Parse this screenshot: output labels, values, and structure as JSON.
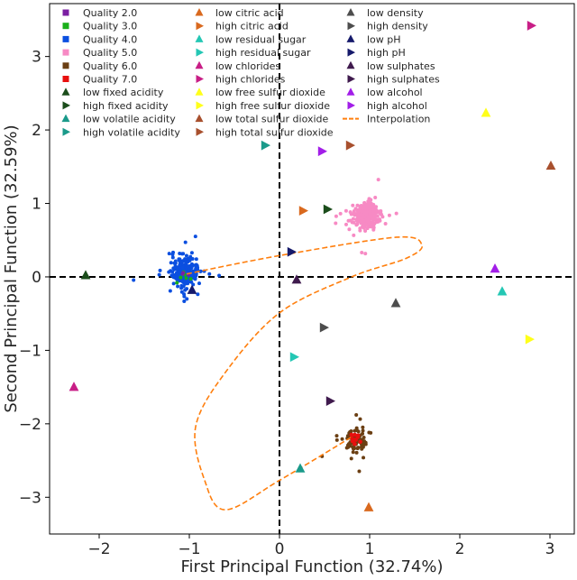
{
  "chart_data": {
    "type": "scatter",
    "xlabel": "First Principal Function (32.74%)",
    "ylabel": "Second Principal Function (32.59%)",
    "xlim": [
      -2.55,
      3.27
    ],
    "ylim": [
      -3.5,
      3.72
    ],
    "xticks": [
      -2,
      -1,
      0,
      1,
      2,
      3
    ],
    "yticks": [
      -3,
      -2,
      -1,
      0,
      1,
      2,
      3
    ],
    "grid": false,
    "reference_lines": {
      "x": 0,
      "y": 0,
      "style": "dashed",
      "color": "#000000"
    },
    "legend_position": "top-left",
    "clusters": [
      {
        "name": "Quality 2.0",
        "color": "#7b1fa2",
        "center": [
          -1.05,
          0.03
        ],
        "spread": [
          0.02,
          0.02
        ],
        "count": 3
      },
      {
        "name": "Quality 3.0",
        "color": "#1aaf1a",
        "center": [
          -1.05,
          0.02
        ],
        "spread": [
          0.03,
          0.03
        ],
        "count": 6
      },
      {
        "name": "Quality 4.0",
        "color": "#0b4fe0",
        "center": [
          -1.05,
          0.06
        ],
        "spread": [
          0.07,
          0.09
        ],
        "count": 300
      },
      {
        "name": "Quality 5.0",
        "color": "#f78ac4",
        "center": [
          0.97,
          0.83
        ],
        "spread": [
          0.07,
          0.08
        ],
        "count": 300
      },
      {
        "name": "Quality 6.0",
        "color": "#6b3f13",
        "center": [
          0.83,
          -2.22
        ],
        "spread": [
          0.06,
          0.08
        ],
        "count": 80
      },
      {
        "name": "Quality 7.0",
        "color": "#e8100e",
        "center": [
          0.83,
          -2.22
        ],
        "spread": [
          0.03,
          0.04
        ],
        "count": 12
      }
    ],
    "markers": [
      {
        "name": "low fixed acidity",
        "shape": "up",
        "color": "#1b4d1b",
        "x": -2.15,
        "y": 0.02
      },
      {
        "name": "high fixed acidity",
        "shape": "right",
        "color": "#1b4d1b",
        "x": 0.53,
        "y": 0.92
      },
      {
        "name": "low volatile acidity",
        "shape": "up",
        "color": "#1a9a8a",
        "x": 0.23,
        "y": -2.61
      },
      {
        "name": "high volatile acidity",
        "shape": "right",
        "color": "#1a9a8a",
        "x": -0.16,
        "y": 1.79
      },
      {
        "name": "low citric acid",
        "shape": "up",
        "color": "#d9691e",
        "x": 0.99,
        "y": -3.14
      },
      {
        "name": "high citric acid",
        "shape": "right",
        "color": "#d9691e",
        "x": 0.26,
        "y": 0.9
      },
      {
        "name": "low residual sugar",
        "shape": "up",
        "color": "#24c7b4",
        "x": 2.47,
        "y": -0.2
      },
      {
        "name": "high residual sugar",
        "shape": "right",
        "color": "#24c7b4",
        "x": 0.16,
        "y": -1.09
      },
      {
        "name": "low chlorides",
        "shape": "up",
        "color": "#c81e86",
        "x": -2.28,
        "y": -1.5
      },
      {
        "name": "high chlorides",
        "shape": "right",
        "color": "#c81e86",
        "x": 2.79,
        "y": 3.42
      },
      {
        "name": "low free sulfur dioxide",
        "shape": "up",
        "color": "#ffff1a",
        "x": 2.29,
        "y": 2.23
      },
      {
        "name": "high free sulfur dioxide",
        "shape": "right",
        "color": "#ffff1a",
        "x": 2.77,
        "y": -0.85
      },
      {
        "name": "low total sulfur dioxide",
        "shape": "up",
        "color": "#a8502e",
        "x": 3.01,
        "y": 1.51
      },
      {
        "name": "high total sulfur dioxide",
        "shape": "right",
        "color": "#a8502e",
        "x": 0.78,
        "y": 1.79
      },
      {
        "name": "low density",
        "shape": "up",
        "color": "#4d4d4d",
        "x": 1.29,
        "y": -0.36
      },
      {
        "name": "high density",
        "shape": "right",
        "color": "#4d4d4d",
        "x": 0.49,
        "y": -0.69
      },
      {
        "name": "low pH",
        "shape": "up",
        "color": "#161a6b",
        "x": -0.97,
        "y": -0.18
      },
      {
        "name": "high pH",
        "shape": "right",
        "color": "#161a6b",
        "x": 0.13,
        "y": 0.34
      },
      {
        "name": "low sulphates",
        "shape": "up",
        "color": "#3f1a4d",
        "x": 0.19,
        "y": -0.04
      },
      {
        "name": "high sulphates",
        "shape": "right",
        "color": "#3f1a4d",
        "x": 0.56,
        "y": -1.69
      },
      {
        "name": "low alcohol",
        "shape": "up",
        "color": "#a21ee8",
        "x": 2.39,
        "y": 0.11
      },
      {
        "name": "high alcohol",
        "shape": "right",
        "color": "#a21ee8",
        "x": 0.47,
        "y": 1.71
      }
    ],
    "interpolation": {
      "name": "Interpolation",
      "color": "#ff7f0e",
      "points": [
        [
          -1.03,
          0.04
        ],
        [
          0,
          0.29
        ],
        [
          1.3,
          0.54
        ],
        [
          1.58,
          0.43
        ],
        [
          1.4,
          0.25
        ],
        [
          0.8,
          0
        ],
        [
          0,
          -0.49
        ],
        [
          -0.6,
          -1.3
        ],
        [
          -0.93,
          -2.04
        ],
        [
          -0.83,
          -2.77
        ],
        [
          -0.6,
          -3.17
        ],
        [
          0,
          -2.77
        ],
        [
          0.8,
          -2.18
        ]
      ]
    }
  }
}
